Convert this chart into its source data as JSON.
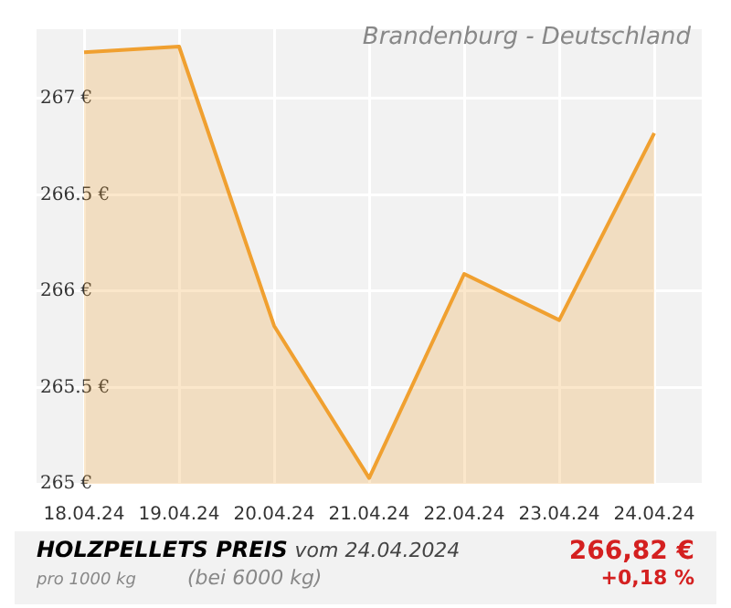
{
  "chart_data": {
    "type": "area",
    "title": "Brandenburg - Deutschland",
    "categories": [
      "18.04.24",
      "19.04.24",
      "20.04.24",
      "21.04.24",
      "22.04.24",
      "23.04.24",
      "24.04.24"
    ],
    "series": [
      {
        "color": "#f0a030",
        "values": [
          267.24,
          267.27,
          265.82,
          265.03,
          266.09,
          265.85,
          266.82
        ]
      }
    ],
    "ylim": [
      265,
      267.36
    ],
    "yticks": [
      {
        "value": 265,
        "label": "265 €"
      },
      {
        "value": 265.5,
        "label": "265.5 €"
      },
      {
        "value": 266,
        "label": "266 €"
      },
      {
        "value": 266.5,
        "label": "266.5 €"
      },
      {
        "value": 267,
        "label": "267 €"
      }
    ],
    "grid": true,
    "legend": false,
    "marker": "none",
    "line_style": "solid",
    "annotations": [
      "HOLZPELLETS PREIS",
      "vom 24.04.2024",
      "pro 1000 kg",
      "(bei 6000 kg)",
      "266,82 €",
      "+0,18 %"
    ]
  }
}
